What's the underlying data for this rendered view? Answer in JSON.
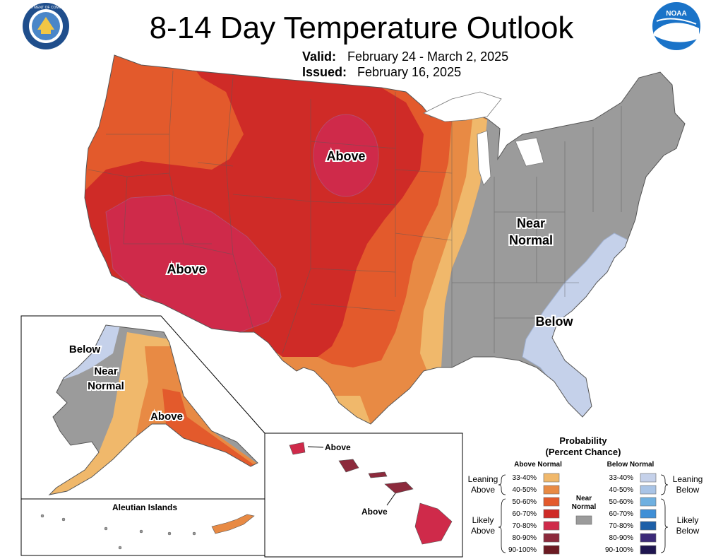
{
  "header": {
    "title": "8-14 Day Temperature Outlook",
    "valid_label": "Valid:",
    "valid_value": "February 24 - March 2, 2025",
    "issued_label": "Issued:",
    "issued_value": "February 16, 2025",
    "doc_seal_text": "DEPARTMENT OF COMMERCE",
    "noaa_logo_text": "NOAA"
  },
  "map": {
    "labels": {
      "north_plains": "Above",
      "southwest": "Above",
      "east_near_1": "Near",
      "east_near_2": "Normal",
      "southeast": "Below",
      "ak_below": "Below",
      "ak_near_1": "Near",
      "ak_near_2": "Normal",
      "ak_above": "Above",
      "hi_above_1": "Above",
      "hi_above_2": "Above"
    },
    "aleutian_title": "Aleutian Islands"
  },
  "legend": {
    "title_1": "Probability",
    "title_2": "(Percent Chance)",
    "above_header": "Above Normal",
    "below_header": "Below Normal",
    "above_bins": [
      "33-40%",
      "40-50%",
      "50-60%",
      "60-70%",
      "70-80%",
      "80-90%",
      "90-100%"
    ],
    "below_bins": [
      "33-40%",
      "40-50%",
      "50-60%",
      "60-70%",
      "70-80%",
      "80-90%",
      "90-100%"
    ],
    "near_normal_1": "Near",
    "near_normal_2": "Normal",
    "leaning_above_1": "Leaning",
    "leaning_above_2": "Above",
    "likely_above_1": "Likely",
    "likely_above_2": "Above",
    "leaning_below_1": "Leaning",
    "leaning_below_2": "Below",
    "likely_below_1": "Likely",
    "likely_below_2": "Below"
  },
  "colors": {
    "above": [
      "#f0b86b",
      "#e88a44",
      "#e35a2c",
      "#cf2b27",
      "#cf2a4a",
      "#8c2a3c",
      "#6b1a22"
    ],
    "below": [
      "#c5d1ea",
      "#a9c4e6",
      "#6fb0e0",
      "#3f8fd6",
      "#1c5fa8",
      "#3c2a78",
      "#1e1550"
    ],
    "near_normal": "#9b9b9b",
    "noaa_blue": "#1a73c8",
    "doc_blue": "#1f4e8c"
  }
}
